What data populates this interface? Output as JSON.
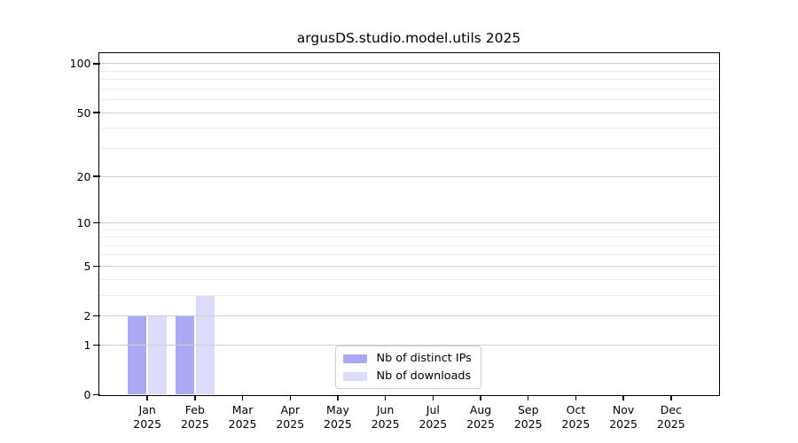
{
  "chart_data": {
    "type": "bar",
    "title": "argusDS.studio.model.utils 2025",
    "categories": [
      "Jan",
      "Feb",
      "Mar",
      "Apr",
      "May",
      "Jun",
      "Jul",
      "Aug",
      "Sep",
      "Oct",
      "Nov",
      "Dec"
    ],
    "category_year": "2025",
    "series": [
      {
        "name": "Nb of distinct IPs",
        "color": "#a9a9f6",
        "values": [
          2,
          2,
          0,
          0,
          0,
          0,
          0,
          0,
          0,
          0,
          0,
          0
        ]
      },
      {
        "name": "Nb of downloads",
        "color": "#dbdbfa",
        "values": [
          2,
          3,
          0,
          0,
          0,
          0,
          0,
          0,
          0,
          0,
          0,
          0
        ]
      }
    ],
    "yscale": "log1p",
    "ylim": [
      0,
      115
    ],
    "yticks": [
      0,
      1,
      2,
      5,
      10,
      20,
      50,
      100
    ],
    "yticks_minor": [
      3,
      4,
      6,
      7,
      8,
      9,
      30,
      40,
      60,
      70,
      80,
      90
    ],
    "grid": "horizontal",
    "legend_position": "lower-center-inside",
    "colors": {
      "major_grid": "#cfcfcf",
      "minor_grid": "#ededed",
      "spine": "#000000",
      "text": "#000000",
      "background": "#ffffff"
    }
  }
}
